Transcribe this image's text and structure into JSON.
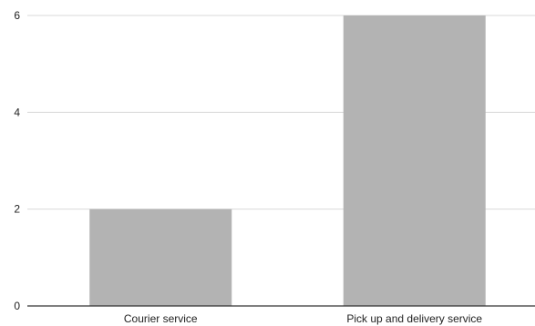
{
  "chart_data": {
    "type": "bar",
    "title": "",
    "xlabel": "",
    "ylabel": "",
    "categories": [
      "Courier service",
      "Pick up and delivery service"
    ],
    "values": [
      2,
      6
    ],
    "ylim": [
      0,
      6
    ],
    "yticks": [
      0,
      2,
      4,
      6
    ],
    "grid": true,
    "legend": "none",
    "colors": {
      "bar": "#b3b3b3",
      "grid": "#d9d9d9",
      "axis": "#333333"
    }
  }
}
